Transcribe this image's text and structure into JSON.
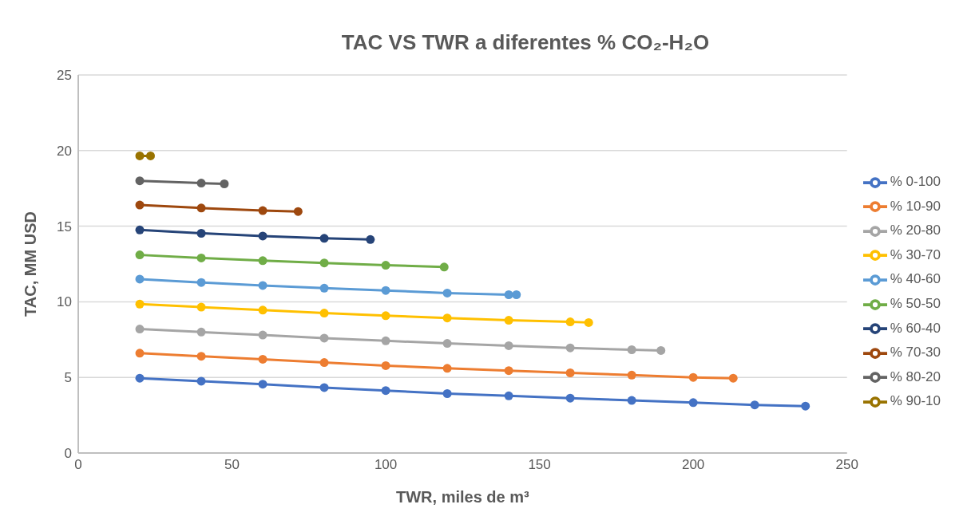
{
  "chart_data": {
    "type": "line",
    "title": "TAC VS TWR a diferentes % CO₂-H₂O",
    "xlabel": "TWR, miles de m³",
    "ylabel": "TAC, MM USD",
    "xlim": [
      0,
      250
    ],
    "xticks": [
      0,
      50,
      100,
      150,
      200,
      250
    ],
    "ylim": [
      0,
      25
    ],
    "yticks": [
      0,
      5,
      10,
      15,
      20,
      25
    ],
    "grid": "y",
    "legend": "right",
    "marker": "circle",
    "line_style": "solid",
    "series": [
      {
        "name": "% 0-100",
        "color": "#4472c4",
        "x": [
          20,
          40,
          60,
          80,
          100,
          120,
          140,
          160,
          180,
          200,
          220,
          236.5
        ],
        "values": [
          4.95,
          4.75,
          4.55,
          4.33,
          4.13,
          3.93,
          3.78,
          3.63,
          3.48,
          3.33,
          3.18,
          3.1
        ]
      },
      {
        "name": "% 10-90",
        "color": "#ed7d31",
        "x": [
          20,
          40,
          60,
          80,
          100,
          120,
          140,
          160,
          180,
          200,
          213
        ],
        "values": [
          6.6,
          6.4,
          6.2,
          5.98,
          5.78,
          5.6,
          5.45,
          5.3,
          5.15,
          5.0,
          4.95
        ]
      },
      {
        "name": "% 20-80",
        "color": "#a5a5a5",
        "x": [
          20,
          40,
          60,
          80,
          100,
          120,
          140,
          160,
          180,
          189.5
        ],
        "values": [
          8.2,
          8.0,
          7.8,
          7.6,
          7.42,
          7.25,
          7.1,
          6.95,
          6.83,
          6.78
        ]
      },
      {
        "name": "% 30-70",
        "color": "#ffc000",
        "x": [
          20,
          40,
          60,
          80,
          100,
          120,
          140,
          160,
          166
        ],
        "values": [
          9.85,
          9.65,
          9.45,
          9.25,
          9.08,
          8.93,
          8.78,
          8.67,
          8.63
        ]
      },
      {
        "name": "% 40-60",
        "color": "#5b9bd5",
        "x": [
          20,
          40,
          60,
          80,
          100,
          120,
          140,
          142.5
        ],
        "values": [
          11.5,
          11.28,
          11.08,
          10.9,
          10.75,
          10.58,
          10.47,
          10.47
        ]
      },
      {
        "name": "% 50-50",
        "color": "#70ad47",
        "x": [
          20,
          40,
          60,
          80,
          100,
          119
        ],
        "values": [
          13.1,
          12.9,
          12.72,
          12.57,
          12.42,
          12.3
        ]
      },
      {
        "name": "% 60-40",
        "color": "#264478",
        "x": [
          20,
          40,
          60,
          80,
          95
        ],
        "values": [
          14.75,
          14.53,
          14.35,
          14.2,
          14.12
        ]
      },
      {
        "name": "% 70-30",
        "color": "#9e480e",
        "x": [
          20,
          40,
          60,
          71.5
        ],
        "values": [
          16.4,
          16.2,
          16.03,
          15.97
        ]
      },
      {
        "name": "% 80-20",
        "color": "#636363",
        "x": [
          20,
          40,
          47.5
        ],
        "values": [
          18.0,
          17.85,
          17.8
        ]
      },
      {
        "name": "% 90-10",
        "color": "#997300",
        "x": [
          20,
          23.5
        ],
        "values": [
          19.65,
          19.65
        ]
      }
    ]
  }
}
